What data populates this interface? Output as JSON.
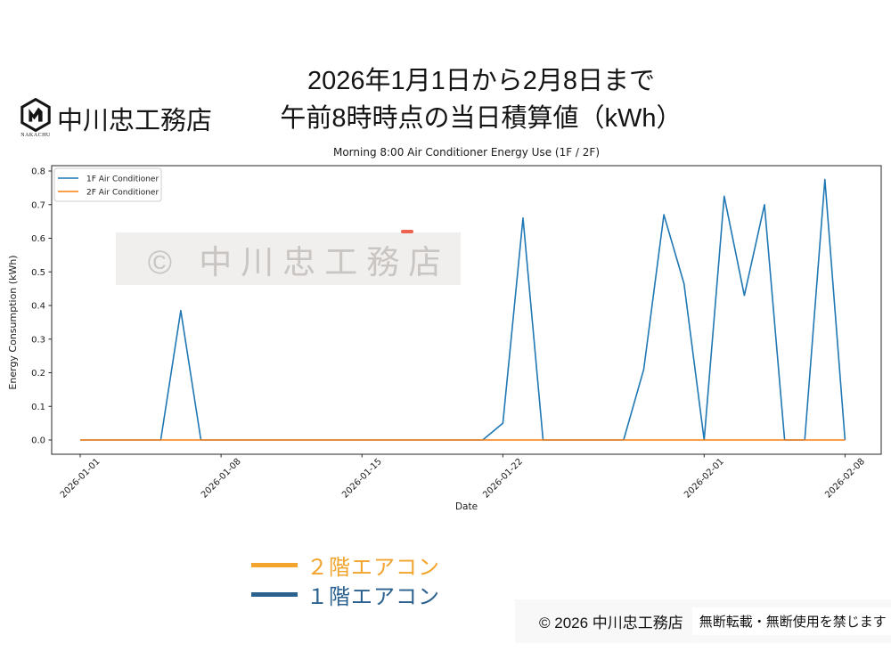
{
  "brand": {
    "company_name": "中川忠工務店",
    "logo_caption": "NAKACHU"
  },
  "header": {
    "title_line1": "2026年1月1日から2月8日まで",
    "title_line2": "午前8時時点の当日積算値（kWh）"
  },
  "watermark": {
    "text": "© 中川忠工務店"
  },
  "bottom_legend": {
    "items": [
      {
        "label": "２階エアコン",
        "color": "#F2A42D"
      },
      {
        "label": "１階エアコン",
        "color": "#2B618F"
      }
    ]
  },
  "footer": {
    "copyright": "© 2026 中川忠工務店",
    "notice": "無断転載・無断使用を禁じます"
  },
  "chart_data": {
    "type": "line",
    "title": "Morning 8:00 Air Conditioner Energy Use (1F / 2F)",
    "xlabel": "Date",
    "ylabel": "Energy Consumption (kWh)",
    "x_start_date": "2026-01-01",
    "x_end_date": "2026-02-08",
    "ylim": [
      0.0,
      0.8
    ],
    "grid": false,
    "legend_position": "upper left",
    "yticks": [
      0.0,
      0.1,
      0.2,
      0.3,
      0.4,
      0.5,
      0.6,
      0.7,
      0.8
    ],
    "xticks": [
      {
        "label": "2026-01-01",
        "day": 0
      },
      {
        "label": "2026-01-08",
        "day": 7
      },
      {
        "label": "2026-01-15",
        "day": 14
      },
      {
        "label": "2026-01-22",
        "day": 21
      },
      {
        "label": "2026-02-01",
        "day": 31
      },
      {
        "label": "2026-02-08",
        "day": 38
      }
    ],
    "series": [
      {
        "name": "1F Air Conditioner",
        "color": "#1f77b4",
        "values": [
          0,
          0,
          0,
          0,
          0,
          0.385,
          0,
          0,
          0,
          0,
          0,
          0,
          0,
          0,
          0,
          0,
          0,
          0,
          0,
          0,
          0,
          0.05,
          0.66,
          0,
          0,
          0,
          0,
          0,
          0.21,
          0.67,
          0.465,
          0,
          0.725,
          0.43,
          0.7,
          0,
          0,
          0.775,
          0
        ]
      },
      {
        "name": "2F Air Conditioner",
        "color": "#ff7f0e",
        "values": [
          0,
          0,
          0,
          0,
          0,
          0,
          0,
          0,
          0,
          0,
          0,
          0,
          0,
          0,
          0,
          0,
          0,
          0,
          0,
          0,
          0,
          0,
          0,
          0,
          0,
          0,
          0,
          0,
          0,
          0,
          0,
          0,
          0,
          0,
          0,
          0,
          0,
          0,
          0
        ]
      }
    ]
  }
}
